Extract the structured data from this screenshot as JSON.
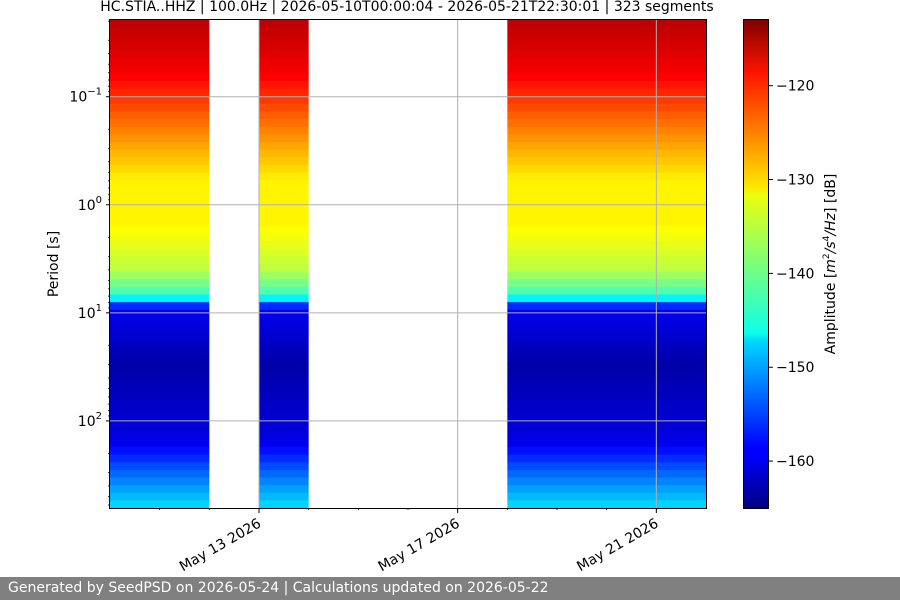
{
  "chart_data": {
    "type": "heatmap",
    "title": "HC.STIA..HHZ | 100.0Hz | 2026-05-10T00:00:04 - 2026-05-21T22:30:01 | 323 segments",
    "ylabel": "Period [s]",
    "yscale": "log",
    "y_inverted": true,
    "ylim": [
      0.0195,
      640
    ],
    "y_ticks": [
      {
        "value": 0.1,
        "base": "10",
        "exp": "−1"
      },
      {
        "value": 1,
        "base": "10",
        "exp": "0"
      },
      {
        "value": 10,
        "base": "10",
        "exp": "1"
      },
      {
        "value": 100,
        "base": "10",
        "exp": "2"
      }
    ],
    "xlim": [
      "2026-05-10",
      "2026-05-22"
    ],
    "x_ticks": [
      "May 13 2026",
      "May 17 2026",
      "May 21 2026"
    ],
    "x_tick_values": [
      "2026-05-13",
      "2026-05-17",
      "2026-05-21"
    ],
    "data_blocks": [
      {
        "start": "2026-05-10",
        "end": "2026-05-12"
      },
      {
        "start": "2026-05-13",
        "end": "2026-05-14"
      },
      {
        "start": "2026-05-18",
        "end": "2026-05-22"
      }
    ],
    "colorbar": {
      "label_parts": [
        "Amplitude [",
        "m",
        "2",
        "/s",
        "4",
        "/Hz",
        "] [dB]"
      ],
      "range": [
        -165,
        -113
      ],
      "ticks": [
        "−120",
        "−130",
        "−140",
        "−150",
        "−160"
      ],
      "tick_values": [
        -120,
        -130,
        -140,
        -150,
        -160
      ],
      "colormap": "jet"
    },
    "grid": true,
    "period_amplitude_profile": [
      {
        "period": 0.02,
        "db": -116
      },
      {
        "period": 0.06,
        "db": -119
      },
      {
        "period": 0.2,
        "db": -126
      },
      {
        "period": 0.6,
        "db": -132
      },
      {
        "period": 1.5,
        "db": -132
      },
      {
        "period": 4,
        "db": -136
      },
      {
        "period": 7,
        "db": -143
      },
      {
        "period": 9,
        "db": -159
      },
      {
        "period": 30,
        "db": -163
      },
      {
        "period": 150,
        "db": -160
      },
      {
        "period": 350,
        "db": -152
      },
      {
        "period": 640,
        "db": -147
      }
    ]
  },
  "footer": {
    "text": "Generated by SeedPSD on 2026-05-24 | Calculations updated on 2026-05-22"
  }
}
